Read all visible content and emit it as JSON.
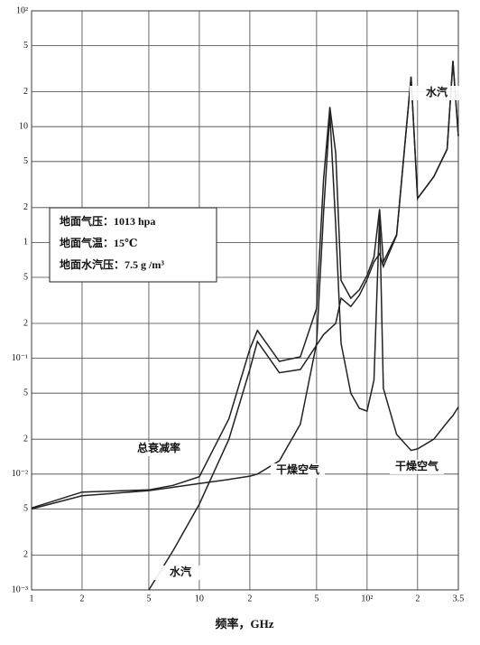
{
  "chart_data": {
    "type": "line",
    "xlabel": "频率，GHz",
    "xscale": "log",
    "yscale": "log",
    "grid": true,
    "xlim": [
      1,
      350
    ],
    "ylim": [
      0.001,
      100
    ],
    "xticks": [
      1,
      2,
      5,
      10,
      {
        "value": 20,
        "label": "2"
      },
      {
        "value": 50,
        "label": "5"
      },
      {
        "value": 100,
        "label": "10²"
      },
      {
        "value": 200,
        "label": "2"
      },
      {
        "value": 350,
        "label": "3.5"
      }
    ],
    "yticks": [
      {
        "value": 100,
        "label": "10²"
      },
      {
        "value": 50,
        "label": "5"
      },
      {
        "value": 20,
        "label": "2"
      },
      10,
      {
        "value": 5,
        "label": "5"
      },
      {
        "value": 2,
        "label": "2"
      },
      1,
      {
        "value": 0.5,
        "label": "5"
      },
      {
        "value": 0.2,
        "label": "2"
      },
      {
        "value": 0.1,
        "label": "10⁻¹"
      },
      {
        "value": 0.05,
        "label": "5"
      },
      {
        "value": 0.02,
        "label": "2"
      },
      {
        "value": 0.01,
        "label": "10⁻²"
      },
      {
        "value": 0.005,
        "label": "5"
      },
      {
        "value": 0.002,
        "label": "2"
      },
      {
        "value": 0.001,
        "label": "10⁻³"
      }
    ],
    "x": [
      1,
      2,
      5,
      7,
      10,
      15,
      20,
      22.2,
      30,
      40,
      50,
      55,
      60,
      65,
      70,
      80,
      90,
      100,
      110,
      118.75,
      125,
      150,
      183,
      200,
      250,
      300,
      325,
      350
    ],
    "series": [
      {
        "name": "总衰减率",
        "color": "#222222",
        "values": [
          0.0051,
          0.007,
          0.0073,
          0.008,
          0.0095,
          0.03,
          0.12,
          0.174,
          0.094,
          0.103,
          0.27,
          3.5,
          14.8,
          5.9,
          0.47,
          0.33,
          0.39,
          0.52,
          0.75,
          1.94,
          0.68,
          1.17,
          27,
          2.4,
          3.7,
          6.4,
          37,
          8.3
        ]
      },
      {
        "name": "干燥空气",
        "color": "#222222",
        "values": [
          0.005,
          0.0065,
          0.0072,
          0.0077,
          0.0083,
          0.009,
          0.0096,
          0.01,
          0.013,
          0.027,
          0.135,
          1.8,
          13,
          1.4,
          0.135,
          0.05,
          0.037,
          0.035,
          0.065,
          1.7,
          0.055,
          0.022,
          0.016,
          0.0165,
          0.02,
          0.028,
          0.032,
          0.038
        ]
      },
      {
        "name": "水汽",
        "color": "#222222",
        "values": [
          null,
          null,
          0.001,
          0.0022,
          0.0055,
          0.02,
          0.08,
          0.14,
          0.075,
          0.08,
          0.13,
          0.16,
          0.18,
          0.2,
          0.33,
          0.28,
          0.35,
          0.48,
          0.68,
          0.8,
          0.62,
          1.15,
          27,
          2.4,
          3.7,
          6.4,
          37,
          8.3
        ]
      }
    ],
    "annotations": [
      "水汽",
      "总衰减率",
      "干燥空气",
      "干燥空气",
      "水汽"
    ],
    "notes": [
      "地面气压：1013 hpa",
      "地面气温：15℃",
      "地面水汽压：7.5 g /m³"
    ]
  }
}
